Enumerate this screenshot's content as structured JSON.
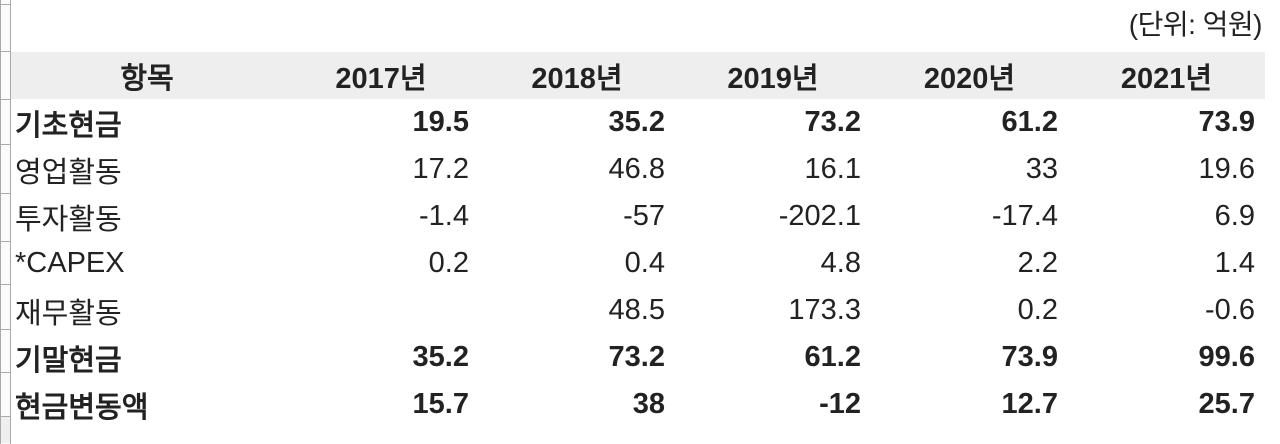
{
  "chart_data": {
    "type": "table",
    "unit_note": "(단위: 억원)",
    "columns": [
      "항목",
      "2017년",
      "2018년",
      "2019년",
      "2020년",
      "2021년"
    ],
    "rows": [
      {
        "label": "기초현금",
        "bold": true,
        "values": [
          "19.5",
          "35.2",
          "73.2",
          "61.2",
          "73.9"
        ]
      },
      {
        "label": "영업활동",
        "bold": false,
        "values": [
          "17.2",
          "46.8",
          "16.1",
          "33",
          "19.6"
        ]
      },
      {
        "label": "투자활동",
        "bold": false,
        "values": [
          "-1.4",
          "-57",
          "-202.1",
          "-17.4",
          "6.9"
        ]
      },
      {
        "label": "*CAPEX",
        "bold": false,
        "values": [
          "0.2",
          "0.4",
          "4.8",
          "2.2",
          "1.4"
        ]
      },
      {
        "label": "재무활동",
        "bold": false,
        "values": [
          "",
          "48.5",
          "173.3",
          "0.2",
          "-0.6"
        ]
      },
      {
        "label": "기말현금",
        "bold": true,
        "values": [
          "35.2",
          "73.2",
          "61.2",
          "73.9",
          "99.6"
        ]
      },
      {
        "label": "현금변동액",
        "bold": true,
        "values": [
          "15.7",
          "38",
          "-12",
          "12.7",
          "25.7"
        ]
      }
    ]
  },
  "colors": {
    "header_bg": "#eeeeee",
    "text": "#222222",
    "grid_line": "#a9a9a9",
    "strip_bg": "#fbfbfb"
  }
}
